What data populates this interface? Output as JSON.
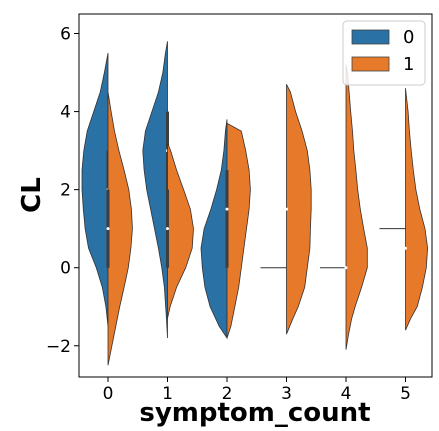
{
  "chart_data": {
    "type": "split-violin",
    "xlabel": "symptom_count",
    "ylabel": "CL",
    "categories": [
      "0",
      "1",
      "2",
      "3",
      "4",
      "5"
    ],
    "ylim": [
      -2.8,
      6.5
    ],
    "yticks": [
      -2,
      0,
      2,
      4,
      6
    ],
    "ytick_labels": [
      "−2",
      "0",
      "2",
      "4",
      "6"
    ],
    "legend": {
      "placement": "top-right",
      "entries": [
        "0",
        "1"
      ]
    },
    "colors": {
      "0": "#2a71a6",
      "1": "#e6792a"
    },
    "series": [
      {
        "name": "0",
        "violins": [
          {
            "category": "0",
            "range": [
              -1.5,
              5.5
            ],
            "q1": 0.0,
            "median": 2.0,
            "q3": 3.0,
            "density": [
              [
                -1.5,
                0.0
              ],
              [
                -1.0,
                0.08
              ],
              [
                -0.5,
                0.22
              ],
              [
                0,
                0.45
              ],
              [
                0.5,
                0.75
              ],
              [
                1,
                0.88
              ],
              [
                1.5,
                0.95
              ],
              [
                2,
                1.0
              ],
              [
                2.5,
                1.0
              ],
              [
                3,
                0.93
              ],
              [
                3.5,
                0.8
              ],
              [
                4,
                0.55
              ],
              [
                4.5,
                0.3
              ],
              [
                5,
                0.14
              ],
              [
                5.5,
                0.0
              ]
            ]
          },
          {
            "category": "1",
            "range": [
              -1.8,
              5.8
            ],
            "q1": 1.0,
            "median": 3.0,
            "q3": 4.0,
            "density": [
              [
                -1.8,
                0.0
              ],
              [
                -1.2,
                0.05
              ],
              [
                -0.5,
                0.12
              ],
              [
                0,
                0.22
              ],
              [
                0.5,
                0.35
              ],
              [
                1,
                0.5
              ],
              [
                1.5,
                0.65
              ],
              [
                2,
                0.8
              ],
              [
                2.5,
                0.9
              ],
              [
                3,
                0.95
              ],
              [
                3.5,
                0.85
              ],
              [
                4,
                0.6
              ],
              [
                4.5,
                0.35
              ],
              [
                5,
                0.18
              ],
              [
                5.5,
                0.08
              ],
              [
                5.8,
                0.0
              ]
            ]
          },
          {
            "category": "2",
            "range": [
              -1.8,
              3.8
            ],
            "q1": 0.0,
            "median": 1.0,
            "q3": 2.0,
            "density": [
              [
                -1.8,
                0.0
              ],
              [
                -1.5,
                0.3
              ],
              [
                -1,
                0.65
              ],
              [
                -0.5,
                0.85
              ],
              [
                0,
                0.95
              ],
              [
                0.5,
                1.0
              ],
              [
                1,
                0.88
              ],
              [
                1.5,
                0.62
              ],
              [
                2,
                0.4
              ],
              [
                2.5,
                0.22
              ],
              [
                3,
                0.12
              ],
              [
                3.5,
                0.06
              ],
              [
                3.8,
                0.0
              ]
            ]
          },
          {
            "category": "3",
            "range": [
              0,
              0
            ],
            "median": 0.0,
            "density": []
          },
          {
            "category": "4",
            "range": [
              0,
              0
            ],
            "median": 0.0,
            "density": []
          },
          {
            "category": "5",
            "range": [
              1,
              1
            ],
            "median": 1.0,
            "density": []
          }
        ]
      },
      {
        "name": "1",
        "violins": [
          {
            "category": "0",
            "range": [
              -2.5,
              4.5
            ],
            "q1": 0.0,
            "median": 1.0,
            "q3": 2.0,
            "density": [
              [
                -2.5,
                0.0
              ],
              [
                -2,
                0.15
              ],
              [
                -1.5,
                0.3
              ],
              [
                -1,
                0.45
              ],
              [
                -0.5,
                0.62
              ],
              [
                0,
                0.78
              ],
              [
                0.5,
                0.88
              ],
              [
                1,
                0.94
              ],
              [
                1.5,
                0.9
              ],
              [
                2,
                0.8
              ],
              [
                2.5,
                0.62
              ],
              [
                3,
                0.42
              ],
              [
                3.5,
                0.25
              ],
              [
                4,
                0.12
              ],
              [
                4.5,
                0.0
              ]
            ]
          },
          {
            "category": "1",
            "range": [
              -1.3,
              3.2
            ],
            "q1": 0.0,
            "median": 1.0,
            "q3": 2.0,
            "density": [
              [
                -1.3,
                0.0
              ],
              [
                -1,
                0.1
              ],
              [
                -0.5,
                0.35
              ],
              [
                0,
                0.7
              ],
              [
                0.5,
                0.95
              ],
              [
                1,
                1.0
              ],
              [
                1.5,
                0.88
              ],
              [
                2,
                0.62
              ],
              [
                2.5,
                0.35
              ],
              [
                3,
                0.12
              ],
              [
                3.2,
                0.0
              ]
            ]
          },
          {
            "category": "2",
            "range": [
              -1.8,
              3.7
            ],
            "q1": 0.0,
            "median": 1.5,
            "q3": 2.5,
            "density": [
              [
                -1.8,
                0.0
              ],
              [
                -1.5,
                0.15
              ],
              [
                -1,
                0.3
              ],
              [
                -0.5,
                0.45
              ],
              [
                0,
                0.55
              ],
              [
                0.5,
                0.65
              ],
              [
                1,
                0.75
              ],
              [
                1.5,
                0.85
              ],
              [
                2,
                0.9
              ],
              [
                2.5,
                0.85
              ],
              [
                3,
                0.72
              ],
              [
                3.5,
                0.55
              ],
              [
                3.7,
                0.0
              ]
            ]
          },
          {
            "category": "3",
            "range": [
              -1.7,
              4.7
            ],
            "median": 1.5,
            "density": [
              [
                -1.7,
                0.0
              ],
              [
                -1.3,
                0.25
              ],
              [
                -1,
                0.45
              ],
              [
                -0.5,
                0.7
              ],
              [
                0,
                0.8
              ],
              [
                0.5,
                0.9
              ],
              [
                1,
                0.92
              ],
              [
                1.5,
                0.95
              ],
              [
                2,
                0.95
              ],
              [
                2.5,
                0.9
              ],
              [
                3,
                0.8
              ],
              [
                3.5,
                0.6
              ],
              [
                4,
                0.35
              ],
              [
                4.5,
                0.15
              ],
              [
                4.7,
                0.0
              ]
            ]
          },
          {
            "category": "4",
            "range": [
              -2.1,
              5.2
            ],
            "median": 0.0,
            "density": [
              [
                -2.1,
                0.0
              ],
              [
                -1.7,
                0.1
              ],
              [
                -1.3,
                0.22
              ],
              [
                -1,
                0.35
              ],
              [
                -0.5,
                0.6
              ],
              [
                0,
                0.82
              ],
              [
                0.5,
                0.82
              ],
              [
                1,
                0.68
              ],
              [
                1.5,
                0.55
              ],
              [
                2,
                0.45
              ],
              [
                2.5,
                0.38
              ],
              [
                3,
                0.3
              ],
              [
                3.5,
                0.25
              ],
              [
                4,
                0.18
              ],
              [
                4.5,
                0.12
              ],
              [
                5,
                0.06
              ],
              [
                5.2,
                0.0
              ]
            ]
          },
          {
            "category": "5",
            "range": [
              -1.6,
              4.6
            ],
            "median": 0.5,
            "density": [
              [
                -1.6,
                0.0
              ],
              [
                -1.3,
                0.2
              ],
              [
                -1,
                0.45
              ],
              [
                -0.5,
                0.65
              ],
              [
                0,
                0.8
              ],
              [
                0.5,
                0.85
              ],
              [
                1,
                0.75
              ],
              [
                1.5,
                0.55
              ],
              [
                2,
                0.4
              ],
              [
                2.5,
                0.3
              ],
              [
                3,
                0.22
              ],
              [
                3.5,
                0.15
              ],
              [
                4,
                0.1
              ],
              [
                4.6,
                0.0
              ]
            ]
          }
        ]
      }
    ]
  }
}
